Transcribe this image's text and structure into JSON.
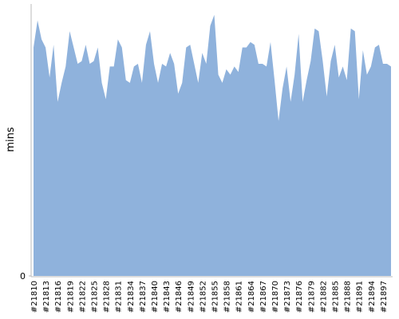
{
  "chart_data": {
    "type": "area",
    "y_label": "mins",
    "color": "#8fb2dc",
    "ylim": [
      0,
      100
    ],
    "yticks": [
      0
    ],
    "categories": [
      "#21810",
      null,
      null,
      "#21813",
      null,
      null,
      "#21816",
      null,
      null,
      "#21819",
      null,
      null,
      "#21822",
      null,
      null,
      "#21825",
      null,
      null,
      "#21828",
      null,
      null,
      "#21831",
      null,
      null,
      "#21834",
      null,
      null,
      "#21837",
      null,
      null,
      "#21840",
      null,
      null,
      "#21843",
      null,
      null,
      "#21846",
      null,
      null,
      "#21849",
      null,
      null,
      "#21852",
      null,
      null,
      "#21855",
      null,
      null,
      "#21858",
      null,
      null,
      "#21861",
      null,
      null,
      "#21864",
      null,
      null,
      "#21867",
      null,
      null,
      "#21870",
      null,
      null,
      "#21873",
      null,
      null,
      "#21876",
      null,
      null,
      "#21879",
      null,
      null,
      "#21882",
      null,
      null,
      "#21885",
      null,
      null,
      "#21888",
      null,
      null,
      "#21891",
      null,
      null,
      "#21894",
      null,
      null,
      "#21897",
      null,
      null
    ],
    "values": [
      84,
      94,
      87,
      84,
      73,
      85,
      64,
      71,
      77,
      90,
      84,
      78,
      79,
      85,
      78,
      79,
      84,
      71,
      65,
      77,
      77,
      87,
      84,
      72,
      71,
      77,
      78,
      71,
      85,
      90,
      78,
      71,
      78,
      77,
      82,
      78,
      67,
      71,
      84,
      85,
      78,
      71,
      82,
      78,
      92,
      96,
      74,
      71,
      76,
      74,
      77,
      75,
      84,
      84,
      86,
      85,
      78,
      78,
      77,
      86,
      72,
      57,
      69,
      77,
      64,
      74,
      89,
      64,
      72,
      79,
      91,
      90,
      79,
      66,
      79,
      85,
      73,
      77,
      72,
      91,
      90,
      65,
      83,
      74,
      77,
      84,
      85,
      78,
      78,
      77
    ]
  }
}
